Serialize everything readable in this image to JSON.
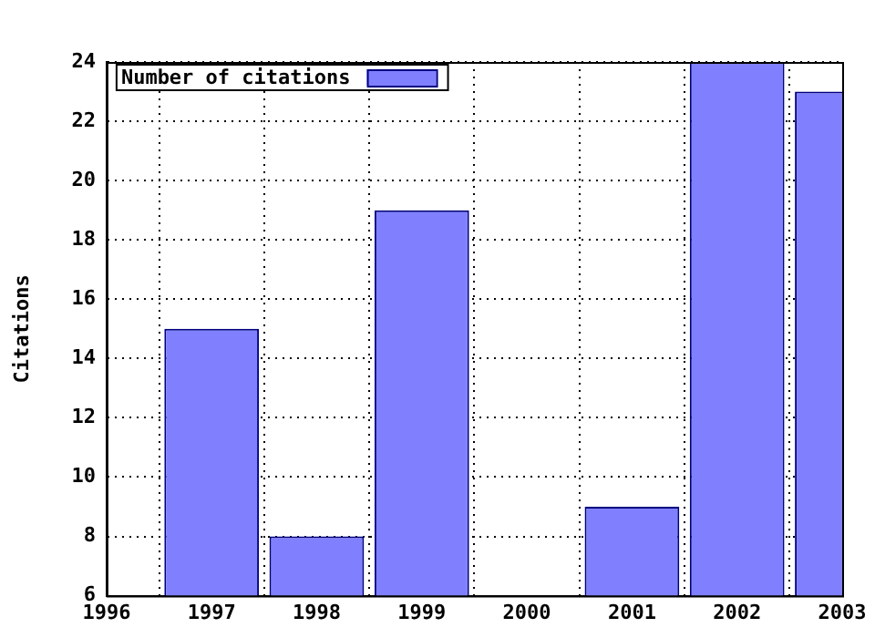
{
  "chart_data": {
    "type": "bar",
    "ylabel": "Citations",
    "x": [
      1997,
      1998,
      1999,
      2000,
      2001,
      2002,
      2003
    ],
    "series": [
      {
        "name": "Number of citations",
        "color": "#8080ff",
        "values": [
          15,
          8,
          19,
          null,
          9,
          24,
          23
        ]
      }
    ],
    "xlim": [
      1996,
      2003
    ],
    "xticks": [
      1996,
      1997,
      1998,
      1999,
      2000,
      2001,
      2002,
      2003
    ],
    "ylim": [
      6,
      24
    ],
    "yticks": [
      6,
      8,
      10,
      12,
      14,
      16,
      18,
      20,
      22,
      24
    ],
    "grid": true,
    "legend": "top left"
  }
}
